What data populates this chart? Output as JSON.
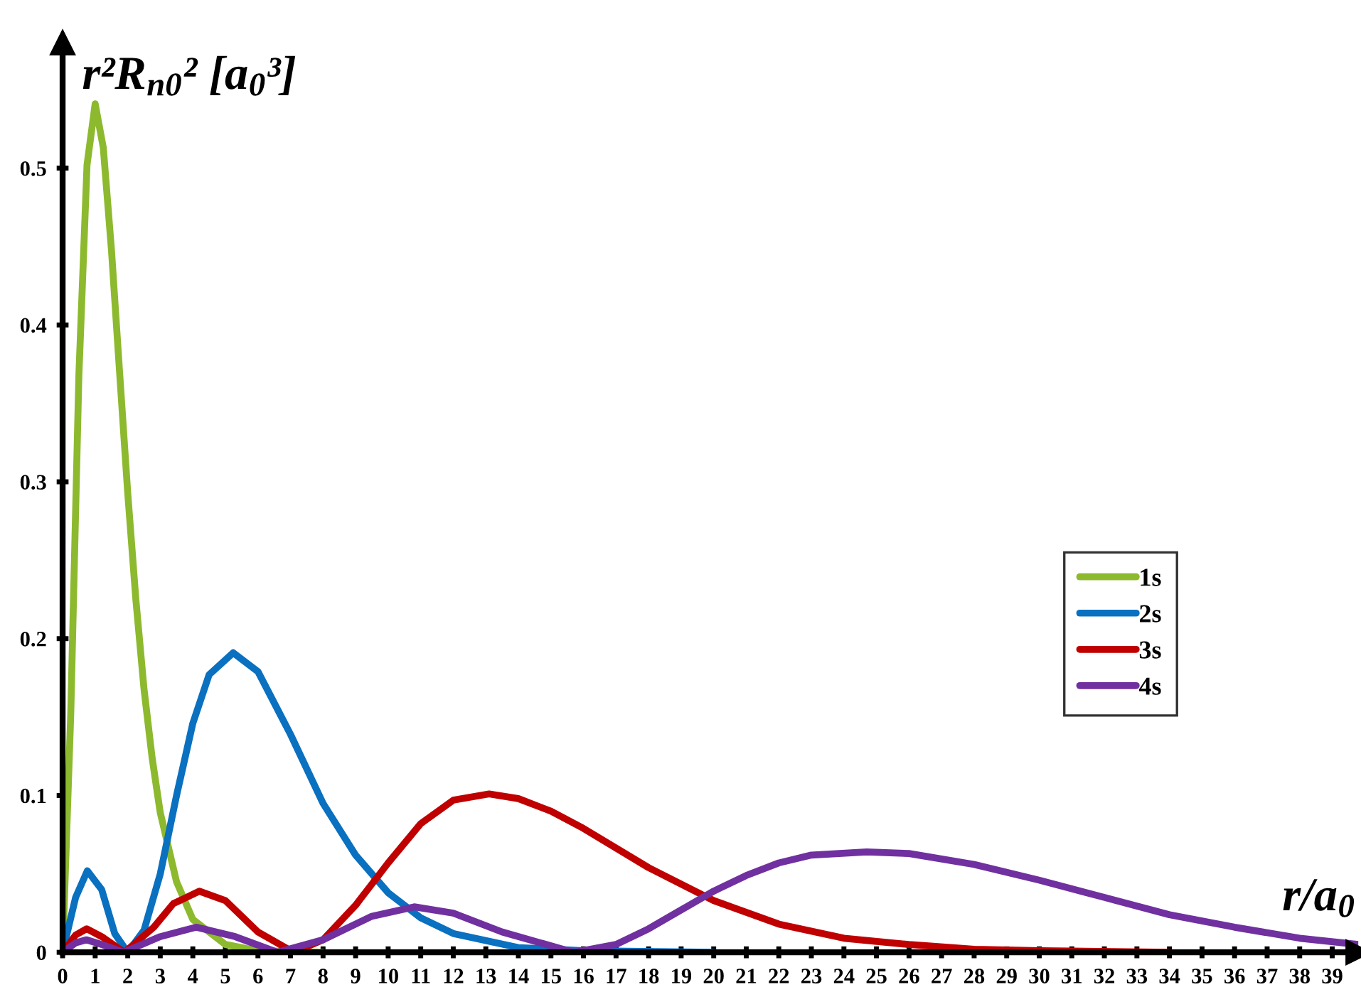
{
  "chart_data": {
    "type": "line",
    "xlabel": "r/a$_{0}$",
    "ylabel": "r²R$_{n0}$² [a$_{0}$³]",
    "xlim": [
      0,
      39.8
    ],
    "ylim": [
      0,
      0.58
    ],
    "xticks": [
      0,
      1,
      2,
      3,
      4,
      5,
      6,
      7,
      8,
      9,
      10,
      11,
      12,
      13,
      14,
      15,
      16,
      17,
      18,
      19,
      20,
      21,
      22,
      23,
      24,
      25,
      26,
      27,
      28,
      29,
      30,
      31,
      32,
      33,
      34,
      35,
      36,
      37,
      38,
      39
    ],
    "yticks": [
      0,
      0.1,
      0.2,
      0.3,
      0.4,
      0.5
    ],
    "grid": false,
    "legend": "right",
    "marker": "none",
    "line_style": "solid",
    "series": [
      {
        "name": "1s",
        "color": "#8db92e",
        "x": [
          0,
          0.25,
          0.5,
          0.75,
          1,
          1.25,
          1.5,
          1.75,
          2,
          2.25,
          2.5,
          2.75,
          3,
          3.5,
          4,
          5,
          6,
          8
        ],
        "values": [
          0,
          0.152,
          0.368,
          0.502,
          0.541,
          0.513,
          0.448,
          0.37,
          0.293,
          0.225,
          0.168,
          0.124,
          0.089,
          0.045,
          0.021,
          0.005,
          0.001,
          0
        ]
      },
      {
        "name": "2s",
        "color": "#0a70c0",
        "x": [
          0,
          0.4,
          0.76,
          1.2,
          1.6,
          2,
          2.5,
          3,
          3.5,
          4,
          4.5,
          5.24,
          6,
          7,
          8,
          9,
          10,
          11,
          12,
          14,
          16,
          20
        ],
        "values": [
          0,
          0.035,
          0.052,
          0.04,
          0.012,
          0,
          0.014,
          0.05,
          0.1,
          0.146,
          0.177,
          0.191,
          0.179,
          0.139,
          0.095,
          0.062,
          0.038,
          0.022,
          0.012,
          0.003,
          0.001,
          0
        ]
      },
      {
        "name": "3s",
        "color": "#c00000",
        "x": [
          0,
          0.4,
          0.74,
          1.2,
          1.9,
          2.8,
          3.4,
          4.2,
          5,
          6,
          7.1,
          8,
          9,
          10,
          11,
          12,
          13.1,
          14,
          15,
          16,
          18,
          20,
          22,
          24,
          26,
          28,
          30,
          34
        ],
        "values": [
          0,
          0.011,
          0.015,
          0.01,
          0,
          0.016,
          0.031,
          0.039,
          0.033,
          0.013,
          0,
          0.008,
          0.03,
          0.057,
          0.082,
          0.097,
          0.101,
          0.098,
          0.09,
          0.079,
          0.054,
          0.033,
          0.018,
          0.009,
          0.005,
          0.002,
          0.001,
          0
        ]
      },
      {
        "name": "4s",
        "color": "#7030a0",
        "x": [
          0,
          0.4,
          0.73,
          1.2,
          1.87,
          3,
          4.1,
          5.3,
          6.6,
          8,
          9.5,
          10.8,
          12,
          13.5,
          15.7,
          17,
          18,
          19,
          20,
          21,
          22,
          23,
          24.7,
          26,
          28,
          30,
          32,
          34,
          36,
          38,
          39.8
        ],
        "values": [
          0,
          0.006,
          0.008,
          0.005,
          0,
          0.01,
          0.016,
          0.01,
          0,
          0.008,
          0.023,
          0.029,
          0.025,
          0.013,
          0,
          0.005,
          0.015,
          0.027,
          0.039,
          0.049,
          0.057,
          0.062,
          0.064,
          0.063,
          0.056,
          0.046,
          0.035,
          0.024,
          0.016,
          0.009,
          0.005
        ]
      }
    ]
  }
}
